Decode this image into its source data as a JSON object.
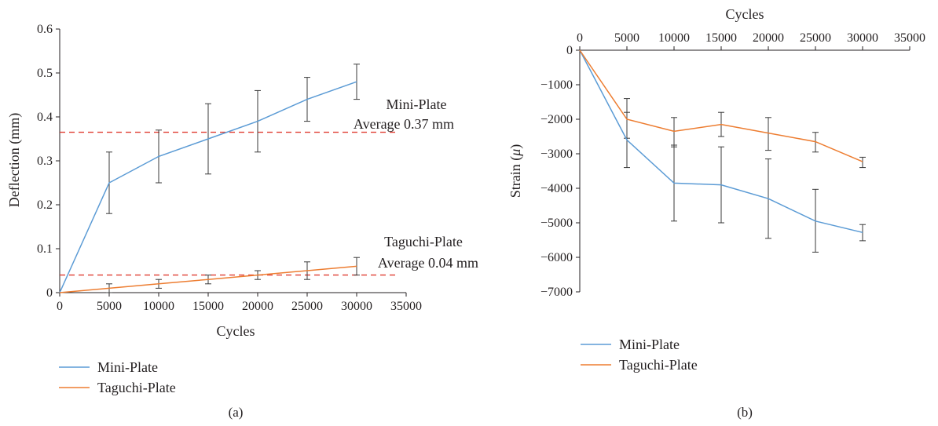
{
  "chart_data": [
    {
      "panel": "(a)",
      "type": "line",
      "xlabel": "Cycles",
      "ylabel": "Deflection (mm)",
      "xlim": [
        0,
        35000
      ],
      "ylim": [
        0,
        0.6
      ],
      "x_ticks": [
        "0",
        "5000",
        "10000",
        "15000",
        "20000",
        "25000",
        "30000",
        "35000"
      ],
      "y_ticks": [
        "0",
        "0.1",
        "0.2",
        "0.3",
        "0.4",
        "0.5",
        "0.6"
      ],
      "x": [
        0,
        5000,
        10000,
        15000,
        20000,
        25000,
        30000
      ],
      "series": [
        {
          "name": "Mini-Plate",
          "color": "#5b9bd5",
          "values": [
            0,
            0.25,
            0.31,
            0.35,
            0.39,
            0.44,
            0.48
          ],
          "err_low": [
            null,
            0.18,
            0.25,
            0.27,
            0.32,
            0.39,
            0.44
          ],
          "err_high": [
            null,
            0.32,
            0.37,
            0.43,
            0.46,
            0.49,
            0.52
          ]
        },
        {
          "name": "Taguchi-Plate",
          "color": "#ed7d31",
          "values": [
            0,
            0.01,
            0.02,
            0.03,
            0.04,
            0.05,
            0.06
          ],
          "err_low": [
            null,
            0.0,
            0.01,
            0.02,
            0.03,
            0.03,
            0.04
          ],
          "err_high": [
            null,
            0.02,
            0.03,
            0.04,
            0.05,
            0.07,
            0.08
          ]
        }
      ],
      "reference_lines": [
        {
          "y": 0.365,
          "color": "#e03c31",
          "label_line1": "Mini-Plate",
          "label_line2": "Average 0.37 mm"
        },
        {
          "y": 0.04,
          "color": "#e03c31",
          "label_line1": "Taguchi-Plate",
          "label_line2": "Average 0.04 mm"
        }
      ],
      "grid": false,
      "legend": "bottom-left"
    },
    {
      "panel": "(b)",
      "type": "line",
      "xlabel": "Cycles",
      "ylabel_text": "Strain (",
      "ylabel_mu": "μ",
      "ylabel_close": ")",
      "xlim": [
        0,
        35000
      ],
      "ylim": [
        -7000,
        0
      ],
      "x_ticks": [
        "0",
        "5000",
        "10000",
        "15000",
        "20000",
        "25000",
        "30000",
        "35000"
      ],
      "y_ticks": [
        "0",
        "−1000",
        "−2000",
        "−3000",
        "−4000",
        "−5000",
        "−6000",
        "−7000"
      ],
      "x": [
        0,
        5000,
        10000,
        15000,
        20000,
        25000,
        30000
      ],
      "series": [
        {
          "name": "Mini-Plate",
          "color": "#5b9bd5",
          "values": [
            0,
            -2600,
            -3850,
            -3900,
            -4300,
            -4950,
            -5280
          ],
          "err_low": [
            null,
            -3400,
            -4950,
            -5000,
            -5450,
            -5850,
            -5520
          ],
          "err_high": [
            null,
            -1800,
            -2750,
            -2800,
            -3150,
            -4030,
            -5050
          ]
        },
        {
          "name": "Taguchi-Plate",
          "color": "#ed7d31",
          "values": [
            0,
            -2000,
            -2350,
            -2150,
            -2400,
            -2650,
            -3230
          ],
          "err_low": [
            null,
            -2550,
            -2800,
            -2500,
            -2900,
            -2950,
            -3400
          ],
          "err_high": [
            null,
            -1400,
            -1950,
            -1800,
            -1950,
            -2380,
            -3100
          ]
        }
      ],
      "grid": false,
      "legend": "bottom-left"
    }
  ]
}
